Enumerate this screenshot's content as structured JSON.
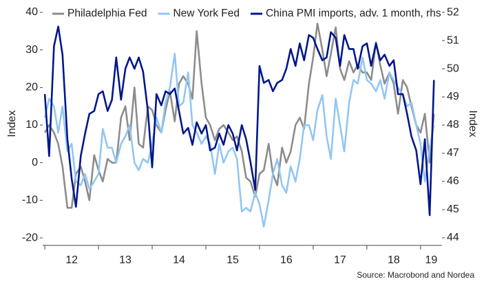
{
  "chart_data": {
    "type": "line",
    "x": [
      12,
      12.08,
      12.17,
      12.25,
      12.33,
      12.42,
      12.5,
      12.58,
      12.67,
      12.75,
      12.83,
      12.92,
      13,
      13.08,
      13.17,
      13.25,
      13.33,
      13.42,
      13.5,
      13.58,
      13.67,
      13.75,
      13.83,
      13.92,
      14,
      14.08,
      14.17,
      14.25,
      14.33,
      14.42,
      14.5,
      14.58,
      14.67,
      14.75,
      14.83,
      14.92,
      15,
      15.08,
      15.17,
      15.25,
      15.33,
      15.42,
      15.5,
      15.58,
      15.67,
      15.75,
      15.83,
      15.92,
      16,
      16.08,
      16.17,
      16.25,
      16.33,
      16.42,
      16.5,
      16.58,
      16.67,
      16.75,
      16.83,
      16.92,
      17,
      17.08,
      17.17,
      17.25,
      17.33,
      17.42,
      17.5,
      17.58,
      17.67,
      17.75,
      17.83,
      17.92,
      18,
      18.08,
      18.17,
      18.25,
      18.33,
      18.42,
      18.5,
      18.58,
      18.67,
      18.75,
      18.83,
      18.92,
      19,
      19.08,
      19.17,
      19.25
    ],
    "xlim": [
      11.96,
      19.4
    ],
    "xticks": [
      12,
      13,
      14,
      15,
      16,
      17,
      18,
      19
    ],
    "ylim": [
      -22,
      42
    ],
    "yticks": [
      -20,
      -10,
      0,
      10,
      20,
      30,
      40
    ],
    "ylabel": "Index",
    "y2lim": [
      43.73,
      52.27
    ],
    "y2ticks": [
      44,
      45,
      46,
      47,
      48,
      49,
      50,
      51,
      52
    ],
    "y2label": "Index",
    "series": [
      {
        "name": "Philadelphia Fed",
        "color": "#8c8c8c",
        "values": [
          8,
          10,
          8,
          5,
          -1,
          -12,
          -12,
          -3,
          -1,
          -5,
          -10,
          2,
          -2,
          -5,
          1,
          0,
          0,
          12,
          15,
          6,
          20,
          5,
          4,
          15,
          14,
          10,
          8,
          14,
          19,
          11,
          21,
          23,
          21,
          17,
          35,
          21,
          12,
          10,
          6,
          9,
          10,
          8,
          6,
          7,
          3,
          -4,
          -5,
          -9,
          -3,
          -2,
          5,
          -3,
          -6,
          4,
          0,
          3,
          10,
          12,
          9,
          21,
          28,
          37,
          30,
          23,
          29,
          36,
          25,
          22,
          27,
          24,
          26,
          24,
          24,
          22,
          32,
          26,
          21,
          24,
          21,
          13,
          22,
          20,
          15,
          10,
          8,
          13,
          0,
          13
        ]
      },
      {
        "name": "New York Fed",
        "color": "#93c6f2",
        "values": [
          12,
          17,
          15,
          8,
          15,
          3,
          5,
          -5,
          -6,
          -3,
          -7,
          -5,
          -3,
          9,
          4,
          4,
          0,
          5,
          7,
          10,
          0,
          -2,
          1,
          0,
          5,
          12,
          8,
          16,
          20,
          29,
          15,
          16,
          24,
          10,
          8,
          5,
          7,
          5,
          -3,
          5,
          0,
          3,
          4,
          1,
          -13,
          -12,
          -13,
          -8,
          -11,
          -17,
          -10,
          -3,
          1,
          -6,
          -8,
          -1,
          -5,
          1,
          10,
          10,
          6,
          14,
          18,
          7,
          1,
          17,
          10,
          3,
          16,
          22,
          21,
          28,
          22,
          21,
          19,
          22,
          17,
          24,
          22,
          20,
          18,
          15,
          16,
          10,
          5,
          -5,
          4,
          10
        ]
      },
      {
        "name": "China PMI imports, adv. 1 month, rhs",
        "color": "#00168c",
        "axis": "y2",
        "values": [
          49.1,
          46.9,
          50.8,
          51.5,
          50.5,
          47.5,
          46.1,
          45.1,
          46.9,
          47.7,
          48.4,
          48.5,
          49.1,
          49.2,
          48.5,
          48.9,
          50.4,
          48.9,
          50.0,
          50.4,
          50.0,
          50.4,
          49.9,
          48.5,
          46.5,
          49.1,
          48.7,
          49.2,
          49.1,
          49.3,
          48.5,
          47.7,
          47.9,
          47.3,
          48.1,
          47.7,
          48.0,
          47.1,
          47.2,
          47.7,
          47.3,
          48.0,
          47.7,
          47.1,
          48.0,
          47.5,
          46.7,
          45.7,
          50.1,
          49.5,
          49.6,
          49.2,
          49.5,
          49.6,
          50.0,
          50.7,
          50.1,
          50.9,
          50.3,
          51.2,
          51.1,
          50.7,
          50.3,
          50.4,
          51.3,
          51.1,
          50.1,
          51.2,
          50.7,
          50.7,
          50.0,
          50.8,
          50.9,
          50.1,
          50.9,
          50.3,
          50.5,
          50.1,
          50.3,
          49.1,
          49.1,
          48.4,
          47.6,
          47.1,
          45.9,
          47.5,
          44.8,
          49.6
        ]
      }
    ],
    "source": "Source: Macrobond and Nordea"
  }
}
